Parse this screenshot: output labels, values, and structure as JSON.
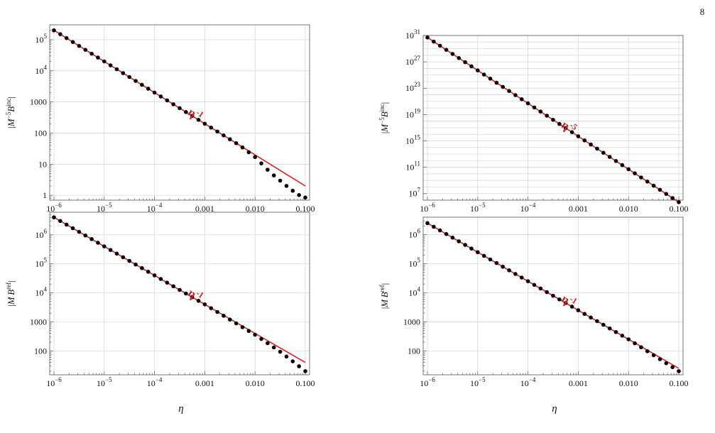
{
  "page_number": "8",
  "x_axis_label": "η",
  "chart_data": [
    {
      "type": "scatter",
      "name": "top-left",
      "ylabel": "|M⁻⁵B^inc|",
      "x_scale": "log",
      "y_scale": "log",
      "xlim": [
        1e-06,
        0.1
      ],
      "ylim": [
        0.7,
        300000
      ],
      "x_ticks": [
        "10⁻⁶",
        "10⁻⁵",
        "10⁻⁴",
        "0.001",
        "0.010",
        "0.100"
      ],
      "y_ticks": [
        "10⁵",
        "10⁴",
        "1000",
        "100",
        "10",
        "1"
      ],
      "grid": true,
      "fit_line": {
        "label": "η^-1",
        "exponent": -1,
        "x": [
          1e-06,
          0.1
        ],
        "y": [
          200000,
          2
        ]
      },
      "annotation": "η^-1",
      "points": [
        [
          1e-06,
          200000
        ],
        [
          1e-05,
          20000
        ],
        [
          0.0001,
          2000
        ],
        [
          0.001,
          200
        ],
        [
          0.005,
          40
        ],
        [
          0.01,
          17
        ],
        [
          0.02,
          5.5
        ],
        [
          0.05,
          1.6
        ],
        [
          0.08,
          0.95
        ],
        [
          0.1,
          0.85
        ]
      ]
    },
    {
      "type": "scatter",
      "name": "top-right",
      "ylabel": "|M⁻⁵B^inc|",
      "x_scale": "log",
      "y_scale": "log",
      "xlim": [
        1e-06,
        0.1
      ],
      "ylim": [
        1000000,
        1e+31
      ],
      "x_ticks": [
        "10⁻⁶",
        "10⁻⁵",
        "10⁻⁴",
        "0.001",
        "0.010",
        "0.100"
      ],
      "y_ticks": [
        "10³¹",
        "10²⁷",
        "10²³",
        "10¹⁹",
        "10¹⁵",
        "10¹¹",
        "10⁷"
      ],
      "grid": true,
      "fit_line": {
        "label": "η^-5",
        "exponent": -5,
        "x": [
          1e-06,
          0.1
        ],
        "y": [
          5e+30,
          500000.0
        ]
      },
      "annotation": "η^-5",
      "points": [
        [
          1e-06,
          5e+30
        ],
        [
          1e-05,
          5e+25
        ],
        [
          0.0001,
          5e+20
        ],
        [
          0.001,
          5000000000000000.0
        ],
        [
          0.01,
          50000000000.0
        ],
        [
          0.1,
          500000.0
        ]
      ]
    },
    {
      "type": "scatter",
      "name": "bottom-left",
      "ylabel": "|M B^ref|",
      "x_scale": "log",
      "y_scale": "log",
      "xlim": [
        1e-06,
        0.1
      ],
      "ylim": [
        15,
        6000000
      ],
      "x_ticks": [
        "10⁻⁶",
        "10⁻⁵",
        "10⁻⁴",
        "0.001",
        "0.010",
        "0.100"
      ],
      "y_ticks": [
        "10⁶",
        "10⁵",
        "10⁴",
        "1000",
        "100"
      ],
      "grid": true,
      "fit_line": {
        "label": "η^-1",
        "exponent": -1,
        "x": [
          1e-06,
          0.1
        ],
        "y": [
          4000000,
          40
        ]
      },
      "annotation": "η^-1",
      "points": [
        [
          1e-06,
          4000000
        ],
        [
          1e-05,
          400000
        ],
        [
          0.0001,
          40000
        ],
        [
          0.001,
          4000
        ],
        [
          0.01,
          360
        ],
        [
          0.03,
          100
        ],
        [
          0.06,
          40
        ],
        [
          0.1,
          20
        ]
      ]
    },
    {
      "type": "scatter",
      "name": "bottom-right",
      "ylabel": "|M B^ref|",
      "x_scale": "log",
      "y_scale": "log",
      "xlim": [
        1e-06,
        0.1
      ],
      "ylim": [
        15,
        4000000
      ],
      "x_ticks": [
        "10⁻⁶",
        "10⁻⁵",
        "10⁻⁴",
        "0.001",
        "0.010",
        "0.100"
      ],
      "y_ticks": [
        "10⁶",
        "10⁵",
        "10⁴",
        "1000",
        "100"
      ],
      "grid": true,
      "fit_line": {
        "label": "η^-1",
        "exponent": -1,
        "x": [
          1e-06,
          0.1
        ],
        "y": [
          2500000,
          25
        ]
      },
      "annotation": "η^-1",
      "points": [
        [
          1e-06,
          2500000
        ],
        [
          1e-05,
          250000
        ],
        [
          0.0001,
          25000
        ],
        [
          0.001,
          2500
        ],
        [
          0.01,
          250
        ],
        [
          0.1,
          20
        ]
      ]
    }
  ]
}
